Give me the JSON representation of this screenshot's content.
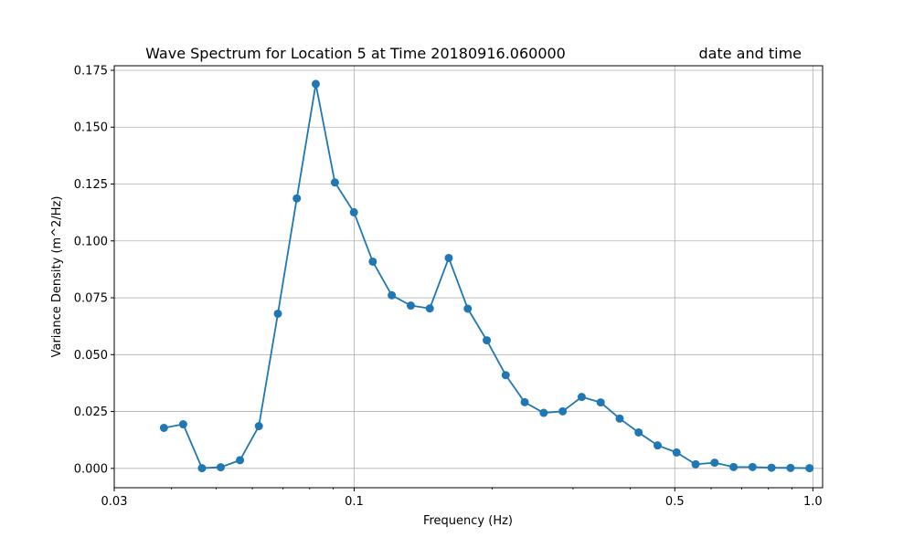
{
  "chart_data": {
    "type": "line",
    "title": "Wave Spectrum for Location 5 at Time 20180916.060000",
    "title_right": "date and time",
    "xlabel": "Frequency (Hz)",
    "ylabel": "Variance Density (m^2/Hz)",
    "x_scale": "log",
    "xlim": [
      0.03,
      1.05
    ],
    "ylim": [
      -0.0085,
      0.177
    ],
    "grid": true,
    "line_color": "#1f77b4",
    "x_ticks": [
      {
        "value": 0.03,
        "label": "0.03"
      },
      {
        "value": 0.1,
        "label": "0.1"
      },
      {
        "value": 0.5,
        "label": "0.5"
      },
      {
        "value": 1.0,
        "label": "1.0"
      }
    ],
    "y_ticks": [
      {
        "value": 0.0,
        "label": "0.000"
      },
      {
        "value": 0.025,
        "label": "0.025"
      },
      {
        "value": 0.05,
        "label": "0.050"
      },
      {
        "value": 0.075,
        "label": "0.075"
      },
      {
        "value": 0.1,
        "label": "0.100"
      },
      {
        "value": 0.125,
        "label": "0.125"
      },
      {
        "value": 0.15,
        "label": "0.150"
      },
      {
        "value": 0.175,
        "label": "0.175"
      }
    ],
    "series": [
      {
        "x": [
          0.0385,
          0.0424,
          0.0466,
          0.0512,
          0.0564,
          0.062,
          0.0682,
          0.075,
          0.0825,
          0.0908,
          0.0999,
          0.1098,
          0.1208,
          0.1329,
          0.1462,
          0.1608,
          0.1769,
          0.1946,
          0.214,
          0.2354,
          0.259,
          0.2849,
          0.3134,
          0.3447,
          0.3792,
          0.417,
          0.4587,
          0.5046,
          0.5551,
          0.6106,
          0.6717,
          0.7388,
          0.8127,
          0.894,
          0.9834
        ],
        "y": [
          0.0178,
          0.0194,
          0.0001,
          0.0005,
          0.0036,
          0.0186,
          0.068,
          0.1187,
          0.169,
          0.1257,
          0.1126,
          0.0909,
          0.0761,
          0.0716,
          0.0703,
          0.0925,
          0.0702,
          0.0563,
          0.041,
          0.0291,
          0.0244,
          0.0251,
          0.0314,
          0.029,
          0.0219,
          0.0158,
          0.0101,
          0.007,
          0.0018,
          0.0025,
          0.0006,
          0.0006,
          0.0003,
          0.0002,
          0.0001
        ]
      }
    ]
  }
}
